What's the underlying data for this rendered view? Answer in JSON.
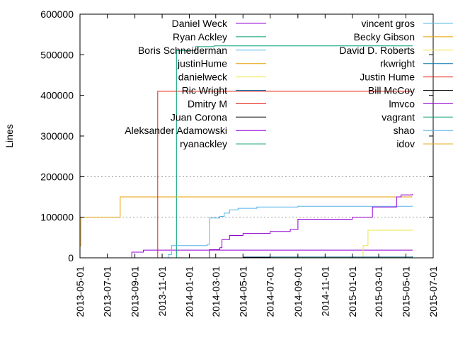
{
  "chart_data": {
    "type": "line",
    "ylabel": "Lines",
    "ylim": [
      0,
      600000
    ],
    "xlim": [
      "2013-05-01",
      "2015-07-01"
    ],
    "x_ticks": [
      "2013-05-01",
      "2013-07-01",
      "2013-09-01",
      "2013-11-01",
      "2014-01-01",
      "2014-03-01",
      "2014-05-01",
      "2014-07-01",
      "2014-09-01",
      "2014-11-01",
      "2015-01-01",
      "2015-03-01",
      "2015-05-01",
      "2015-07-01"
    ],
    "y_ticks": [
      {
        "value": 0,
        "label": "0"
      },
      {
        "value": 100000,
        "label": "100000"
      },
      {
        "value": 200000,
        "label": "200000"
      },
      {
        "value": 300000,
        "label": "300000"
      },
      {
        "value": 400000,
        "label": "400000"
      },
      {
        "value": 500000,
        "label": "500000"
      },
      {
        "value": 600000,
        "label": "600000"
      }
    ],
    "grid": "horizontal dotted at 100000 and 200000",
    "legend_placement": "top, two columns",
    "series": [
      {
        "name": "Daniel Weck",
        "color": "#9400d3",
        "points": [
          [
            "2013-08-23",
            0
          ],
          [
            "2013-08-25",
            14000
          ],
          [
            "2013-09-20",
            19000
          ],
          [
            "2015-05-15",
            20000
          ]
        ]
      },
      {
        "name": "Ryan Ackley",
        "color": "#009e73",
        "points": [
          [
            "2013-12-01",
            0
          ],
          [
            "2013-12-03",
            510000
          ],
          [
            "2014-01-15",
            520000
          ],
          [
            "2014-02-25",
            522000
          ],
          [
            "2015-05-15",
            523000
          ]
        ]
      },
      {
        "name": "Boris Schneiderman",
        "color": "#56b4e9",
        "points": [
          [
            "2013-11-10",
            0
          ],
          [
            "2013-11-15",
            8000
          ],
          [
            "2013-11-22",
            30000
          ],
          [
            "2014-02-10",
            33000
          ],
          [
            "2014-02-15",
            98000
          ],
          [
            "2014-03-10",
            102000
          ],
          [
            "2014-03-20",
            110000
          ],
          [
            "2014-04-01",
            118000
          ],
          [
            "2014-04-20",
            122000
          ],
          [
            "2014-06-01",
            125000
          ],
          [
            "2014-09-01",
            127000
          ],
          [
            "2015-05-15",
            128000
          ]
        ]
      },
      {
        "name": "justinHume",
        "color": "#e69f00",
        "points": [
          [
            "2013-05-01",
            30000
          ],
          [
            "2013-05-03",
            100000
          ],
          [
            "2013-07-25",
            100000
          ],
          [
            "2013-07-30",
            150000
          ],
          [
            "2015-05-15",
            150000
          ]
        ]
      },
      {
        "name": "danielweck",
        "color": "#f0e442",
        "points": [
          [
            "2015-01-15",
            0
          ],
          [
            "2015-01-25",
            30000
          ],
          [
            "2015-02-05",
            68000
          ],
          [
            "2015-05-15",
            70000
          ]
        ]
      },
      {
        "name": "Ric Wright",
        "color": "#0072b2",
        "points": [
          [
            "2014-05-01",
            2000
          ],
          [
            "2015-05-15",
            3000
          ]
        ]
      },
      {
        "name": "Dmitry M",
        "color": "#e51e10",
        "points": [
          [
            "2013-10-18",
            0
          ],
          [
            "2013-10-22",
            410000
          ],
          [
            "2015-05-15",
            410000
          ]
        ]
      },
      {
        "name": "Juan Corona",
        "color": "#000000",
        "points": [
          [
            "2014-05-01",
            1000
          ],
          [
            "2015-05-15",
            2000
          ]
        ]
      },
      {
        "name": "Aleksander Adamowski",
        "color": "#9400d3",
        "points": [
          [
            "2014-02-10",
            0
          ],
          [
            "2014-02-15",
            20000
          ],
          [
            "2014-03-10",
            25000
          ],
          [
            "2014-03-15",
            45000
          ],
          [
            "2014-04-01",
            55000
          ],
          [
            "2014-05-01",
            60000
          ],
          [
            "2014-07-01",
            65000
          ],
          [
            "2014-08-15",
            70000
          ],
          [
            "2014-09-01",
            95000
          ],
          [
            "2015-01-01",
            100000
          ],
          [
            "2015-02-15",
            125000
          ],
          [
            "2015-04-10",
            150000
          ],
          [
            "2015-04-20",
            155000
          ],
          [
            "2015-05-15",
            157000
          ]
        ]
      },
      {
        "name": "ryanackley",
        "color": "#009e73",
        "points": [
          [
            "2014-07-01",
            1000
          ],
          [
            "2015-05-15",
            2000
          ]
        ]
      },
      {
        "name": "vincent gros",
        "color": "#56b4e9",
        "points": [
          [
            "2014-07-01",
            1000
          ],
          [
            "2015-05-15",
            1500
          ]
        ]
      },
      {
        "name": "Becky Gibson",
        "color": "#e69f00",
        "points": [
          [
            "2014-07-01",
            500
          ],
          [
            "2015-05-15",
            1000
          ]
        ]
      },
      {
        "name": "David D. Roberts",
        "color": "#f0e442",
        "points": [
          [
            "2014-07-01",
            500
          ],
          [
            "2015-05-15",
            800
          ]
        ]
      },
      {
        "name": "rkwright",
        "color": "#0072b2",
        "points": [
          [
            "2014-07-01",
            1000
          ],
          [
            "2015-05-15",
            4000
          ]
        ]
      },
      {
        "name": "Justin Hume",
        "color": "#e51e10",
        "points": [
          [
            "2014-07-01",
            500
          ],
          [
            "2015-05-15",
            700
          ]
        ]
      },
      {
        "name": "Bill McCoy",
        "color": "#000000",
        "points": [
          [
            "2014-07-01",
            500
          ],
          [
            "2015-05-15",
            600
          ]
        ]
      },
      {
        "name": "lmvco",
        "color": "#9400d3",
        "points": [
          [
            "2014-07-01",
            300
          ],
          [
            "2015-05-15",
            400
          ]
        ]
      },
      {
        "name": "vagrant",
        "color": "#009e73",
        "points": [
          [
            "2014-07-01",
            300
          ],
          [
            "2015-05-15",
            400
          ]
        ]
      },
      {
        "name": "shao",
        "color": "#56b4e9",
        "points": [
          [
            "2014-07-01",
            200
          ],
          [
            "2015-05-15",
            300
          ]
        ]
      },
      {
        "name": "idov",
        "color": "#e69f00",
        "points": [
          [
            "2014-07-01",
            200
          ],
          [
            "2015-05-15",
            300
          ]
        ]
      }
    ]
  }
}
